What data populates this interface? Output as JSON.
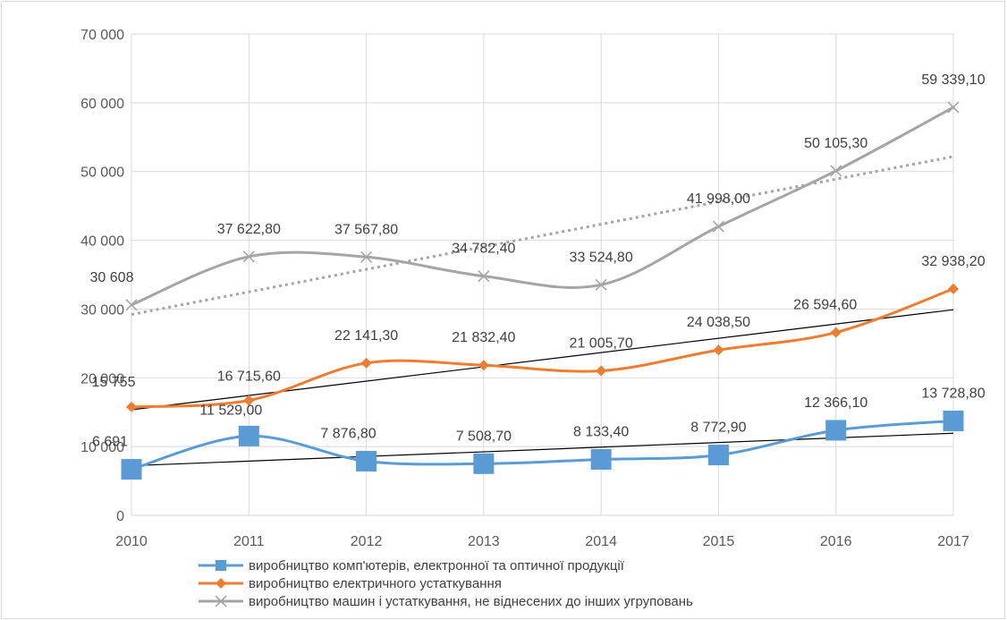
{
  "chart_data": {
    "type": "line",
    "title": "",
    "xlabel": "",
    "ylabel": "",
    "x": [
      "2010",
      "2011",
      "2012",
      "2013",
      "2014",
      "2015",
      "2016",
      "2017"
    ],
    "ylim": [
      0,
      70000
    ],
    "y_ticks": [
      0,
      10000,
      20000,
      30000,
      40000,
      50000,
      60000,
      70000
    ],
    "y_tick_labels": [
      "0",
      "10 000",
      "20 000",
      "30 000",
      "40 000",
      "50 000",
      "60 000",
      "70 000"
    ],
    "grid": true,
    "smooth": true,
    "legend_position": "bottom",
    "series": [
      {
        "name": "виробництво комп'ютерів, електронної та оптичної продукції",
        "color": "#5b9bd5",
        "marker": "square",
        "values": [
          6691,
          11529,
          7876.8,
          7508.7,
          8133.4,
          8772.9,
          12366.1,
          13728.8
        ],
        "labels": [
          "6 691",
          "11 529,00",
          "7 876,80",
          "7 508,70",
          "8 133,40",
          "8 772,90",
          "12 366,10",
          "13 728,80"
        ],
        "trendline": {
          "style": "solid",
          "color": "#000000"
        }
      },
      {
        "name": "виробництво електричного устаткування",
        "color": "#ed7d31",
        "marker": "diamond",
        "values": [
          15755,
          16715.6,
          22141.3,
          21832.4,
          21005.7,
          24038.5,
          26594.6,
          32938.2
        ],
        "labels": [
          "15 755",
          "16 715,60",
          "22 141,30",
          "21 832,40",
          "21 005,70",
          "24 038,50",
          "26 594,60",
          "32 938,20"
        ],
        "trendline": {
          "style": "solid",
          "color": "#000000"
        }
      },
      {
        "name": "виробництво машин і устаткування, не віднесених до інших угруповань",
        "color": "#a5a5a5",
        "marker": "x",
        "values": [
          30608,
          37622.8,
          37567.8,
          34782.4,
          33524.8,
          41998,
          50105.3,
          59339.1
        ],
        "labels": [
          "30 608",
          "37 622,80",
          "37 567,80",
          "34 782,40",
          "33 524,80",
          "41 998,00",
          "50 105,30",
          "59 339,10"
        ],
        "trendline": {
          "style": "dotted",
          "color": "#a5a5a5"
        }
      }
    ]
  }
}
